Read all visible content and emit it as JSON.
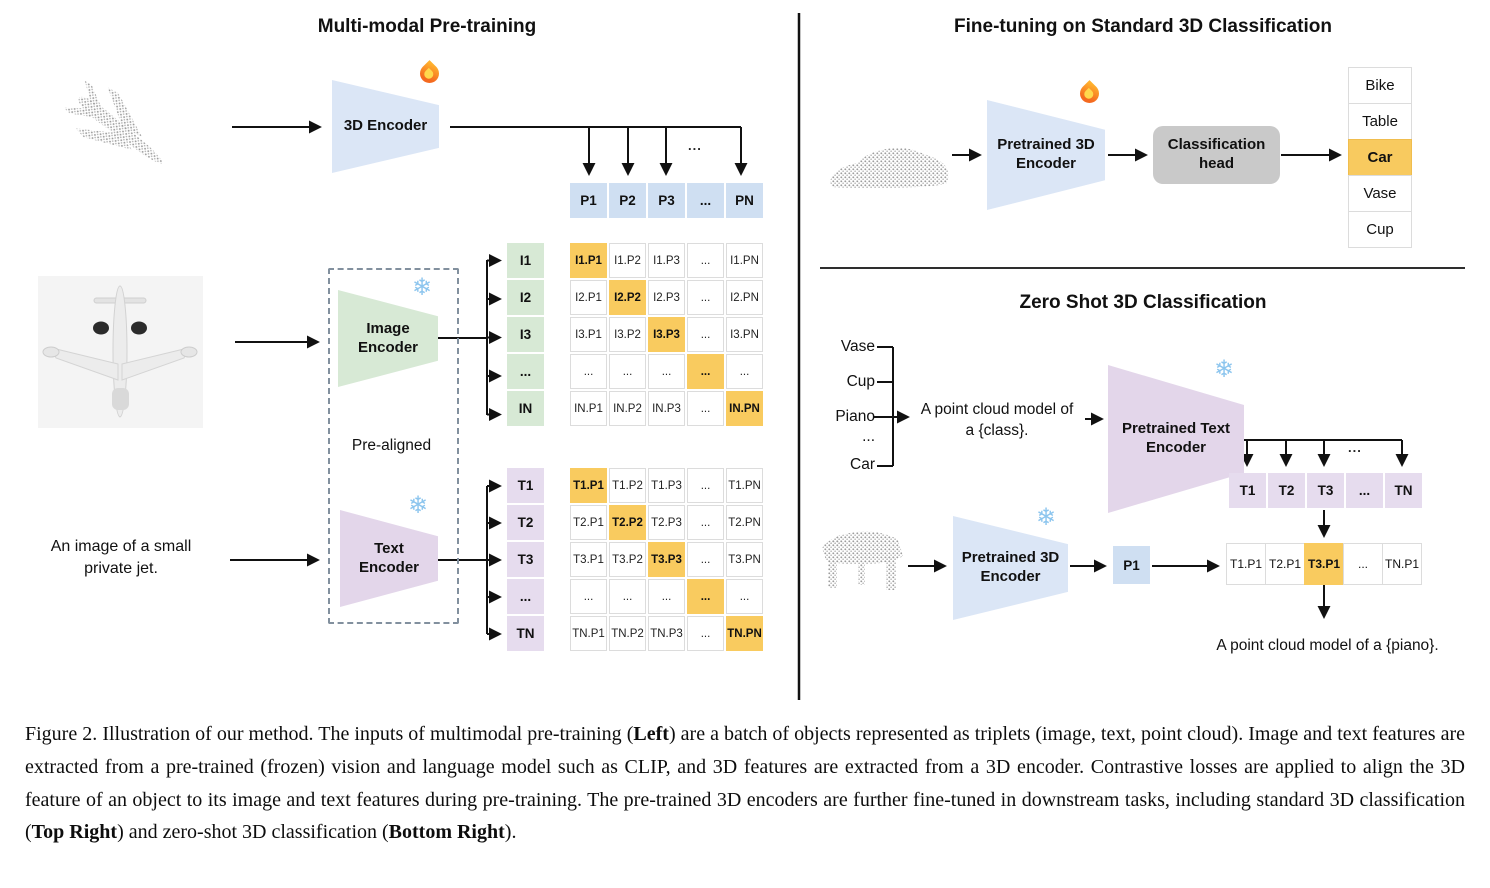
{
  "left": {
    "title": "Multi-modal Pre-training",
    "encoder3d_label": "3D Encoder",
    "image_encoder_label": "Image\nEncoder",
    "text_encoder_label": "Text\nEncoder",
    "prealigned": "Pre-aligned",
    "jet_caption": "An image of a small\nprivate jet.",
    "ellipsis": "...",
    "p_row": [
      "P1",
      "P2",
      "P3",
      "...",
      "PN"
    ],
    "i_col": [
      "I1",
      "I2",
      "I3",
      "...",
      "IN"
    ],
    "t_col": [
      "T1",
      "T2",
      "T3",
      "...",
      "TN"
    ],
    "i_matrix": [
      [
        "I1.P1",
        "I1.P2",
        "I1.P3",
        "...",
        "I1.PN"
      ],
      [
        "I2.P1",
        "I2.P2",
        "I2.P3",
        "...",
        "I2.PN"
      ],
      [
        "I3.P1",
        "I3.P2",
        "I3.P3",
        "...",
        "I3.PN"
      ],
      [
        "...",
        "...",
        "...",
        "...",
        "..."
      ],
      [
        "IN.P1",
        "IN.P2",
        "IN.P3",
        "...",
        "IN.PN"
      ]
    ],
    "t_matrix": [
      [
        "T1.P1",
        "T1.P2",
        "T1.P3",
        "...",
        "T1.PN"
      ],
      [
        "T2.P1",
        "T2.P2",
        "T2.P3",
        "...",
        "T2.PN"
      ],
      [
        "T3.P1",
        "T3.P2",
        "T3.P3",
        "...",
        "T3.PN"
      ],
      [
        "...",
        "...",
        "...",
        "...",
        "..."
      ],
      [
        "TN.P1",
        "TN.P2",
        "TN.P3",
        "...",
        "TN.PN"
      ]
    ]
  },
  "top_right": {
    "title": "Fine-tuning on Standard 3D Classification",
    "encoder_label": "Pretrained 3D\nEncoder",
    "head_label": "Classification\nhead",
    "classes": [
      "Bike",
      "Table",
      "Car",
      "Vase",
      "Cup"
    ],
    "highlighted_class": "Car"
  },
  "bottom_right": {
    "title": "Zero Shot 3D Classification",
    "class_prompts": [
      "Vase",
      "Cup",
      "Piano",
      "...",
      "Car"
    ],
    "prompt": "A point cloud model of\na {class}.",
    "text_encoder_label": "Pretrained Text\nEncoder",
    "encoder_label": "Pretrained 3D\nEncoder",
    "p1": "P1",
    "t_row": [
      "T1",
      "T2",
      "T3",
      "...",
      "TN"
    ],
    "sim_row": [
      "T1.P1",
      "T2.P1",
      "T3.P1",
      "...",
      "TN.P1"
    ],
    "sim_highlight_index": 2,
    "ellipsis": "...",
    "result": "A point cloud model of a {piano}."
  },
  "icons": {
    "snowflake_glyph": "❄",
    "flame_name": "flame-icon",
    "snowflake_name": "snowflake-icon"
  },
  "colors": {
    "highlight_orange": "#f9cb5f",
    "cell_blue": "#cfdff2",
    "shape_blue": "#dbe6f6",
    "shape_green": "#d7e9d5",
    "shape_purple": "#e3d6ea",
    "head_gray": "#c9c9c9"
  },
  "caption": {
    "segments": [
      {
        "text": "Figure 2. Illustration of our method. The inputs of multimodal pre-training (",
        "bold": false
      },
      {
        "text": "Left",
        "bold": true
      },
      {
        "text": ") are a batch of objects represented as triplets (image, text, point cloud).  Image and text features are extracted from a pre-trained (frozen) vision and language model such as CLIP, and 3D features are extracted from a 3D encoder.  Contrastive losses are applied to align the 3D feature of an object to its image and text features during pre-training.  The pre-trained 3D encoders are further fine-tuned in downstream tasks, including standard 3D classification (",
        "bold": false
      },
      {
        "text": "Top Right",
        "bold": true
      },
      {
        "text": ") and zero-shot 3D classification (",
        "bold": false
      },
      {
        "text": "Bottom Right",
        "bold": true
      },
      {
        "text": ").",
        "bold": false
      }
    ]
  }
}
